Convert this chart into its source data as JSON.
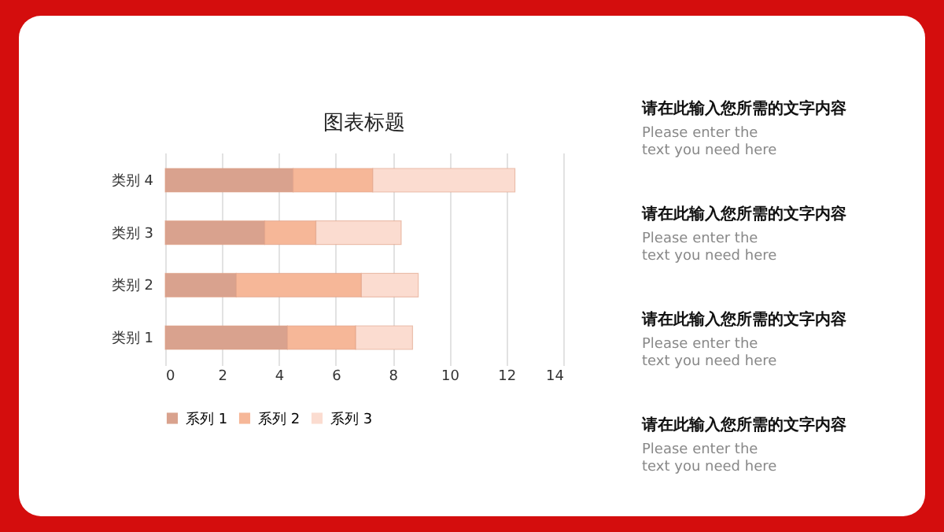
{
  "chart_data": {
    "type": "bar",
    "title": "图表标题",
    "orientation": "horizontal",
    "stacked": true,
    "categories": [
      "类别 4",
      "类别 3",
      "类别 2",
      "类别 1"
    ],
    "series": [
      {
        "name": "系列 1",
        "color": "#d9a28e",
        "values": [
          4.5,
          3.5,
          2.5,
          4.3
        ]
      },
      {
        "name": "系列 2",
        "color": "#f6b798",
        "values": [
          2.8,
          1.8,
          4.4,
          2.4
        ]
      },
      {
        "name": "系列 3",
        "color": "#fbdcd0",
        "values": [
          5,
          3,
          2,
          2
        ]
      }
    ],
    "xlim": [
      0,
      14
    ],
    "xticks": [
      0,
      2,
      4,
      6,
      8,
      10,
      12,
      14
    ],
    "grid": "x",
    "legend": "bottom",
    "annotations": [
      "请在此输入您所需的文字内容",
      "Please enter the text you need here",
      "请在此输入您所需的文字内容",
      "Please enter the text you need here",
      "请在此输入您所需的文字内容",
      "Please enter the text you need here",
      "请在此输入您所需的文字内容",
      "Please enter the text you need here"
    ]
  }
}
